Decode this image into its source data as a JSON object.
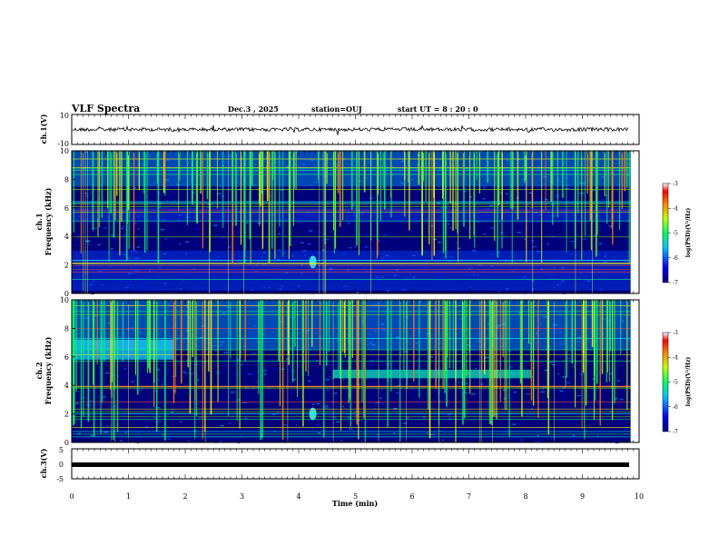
{
  "header": {
    "title": "VLF Spectra",
    "date": "Dec.3  , 2025",
    "station": "station=OUJ",
    "start": "start  UT  =   8  : 20 : 0"
  },
  "chart_data": {
    "type": "heatmap",
    "x_axis": {
      "label": "Time  (min)",
      "range": [
        0,
        10
      ],
      "ticks": [
        "0",
        "1",
        "2",
        "3",
        "4",
        "5",
        "6",
        "7",
        "8",
        "9",
        "10"
      ]
    },
    "panels": [
      {
        "name": "ch.1 waveform",
        "type": "line",
        "ylabel": "ch.1(V)",
        "ylim": [
          -10,
          10
        ],
        "yticks": [
          "10",
          "-10"
        ]
      },
      {
        "name": "ch.1 spectrogram",
        "type": "heatmap",
        "ylabel_top": "ch.1",
        "ylabel": "Frequency  (kHz)",
        "ylim": [
          0,
          10
        ],
        "yticks": [
          "0",
          "2",
          "4",
          "6",
          "8",
          "10"
        ],
        "colorbar": {
          "label": "log(PSD)(V²/Hz)",
          "range": [
            -7,
            -3
          ],
          "ticks": [
            "-3",
            "-4",
            "-5",
            "-6",
            "-7"
          ]
        },
        "features": [
          {
            "label": "strong VLF impulses up to 10 kHz",
            "x_range": [
              0,
              9.85
            ]
          },
          {
            "label": "noise band",
            "y_range": [
              5.0,
              6.0
            ]
          },
          {
            "label": "noise band",
            "y_range": [
              0.2,
              3.0
            ]
          },
          {
            "label": "emission blob",
            "x": 4.25,
            "y": 2.2
          }
        ]
      },
      {
        "name": "ch.2 spectrogram",
        "type": "heatmap",
        "ylabel_top": "ch.2",
        "ylabel": "Frequency  (kHz)",
        "ylim": [
          0,
          10
        ],
        "yticks": [
          "0",
          "2",
          "4",
          "6",
          "8",
          "10"
        ],
        "colorbar": {
          "label": "log(PSD)(V²/Hz)",
          "range": [
            -7,
            -3
          ],
          "ticks": [
            "-3",
            "-4",
            "-5",
            "-6",
            "-7"
          ]
        },
        "features": [
          {
            "label": "emission band",
            "x_range": [
              0,
              1.8
            ],
            "y_range": [
              5.8,
              7.2
            ]
          },
          {
            "label": "emission band",
            "x_range": [
              4.6,
              8.1
            ],
            "y_range": [
              4.5,
              5.1
            ]
          },
          {
            "label": "emission blob",
            "x": 4.25,
            "y": 2.0
          },
          {
            "label": "strong VLF impulses up to 10 kHz",
            "x_range": [
              0,
              9.85
            ]
          }
        ]
      },
      {
        "name": "ch.3 waveform",
        "type": "line",
        "ylabel": "ch.3(V)",
        "ylim": [
          -5,
          5
        ],
        "yticks": [
          "5",
          "0",
          "-5"
        ],
        "value": -0.1
      }
    ],
    "colors": {
      "background": "#00008b",
      "low": "#0000cd",
      "mid": "#00bfff",
      "high": "#00ff7f",
      "peak": "#ffff00",
      "max": "#ff0000"
    }
  }
}
